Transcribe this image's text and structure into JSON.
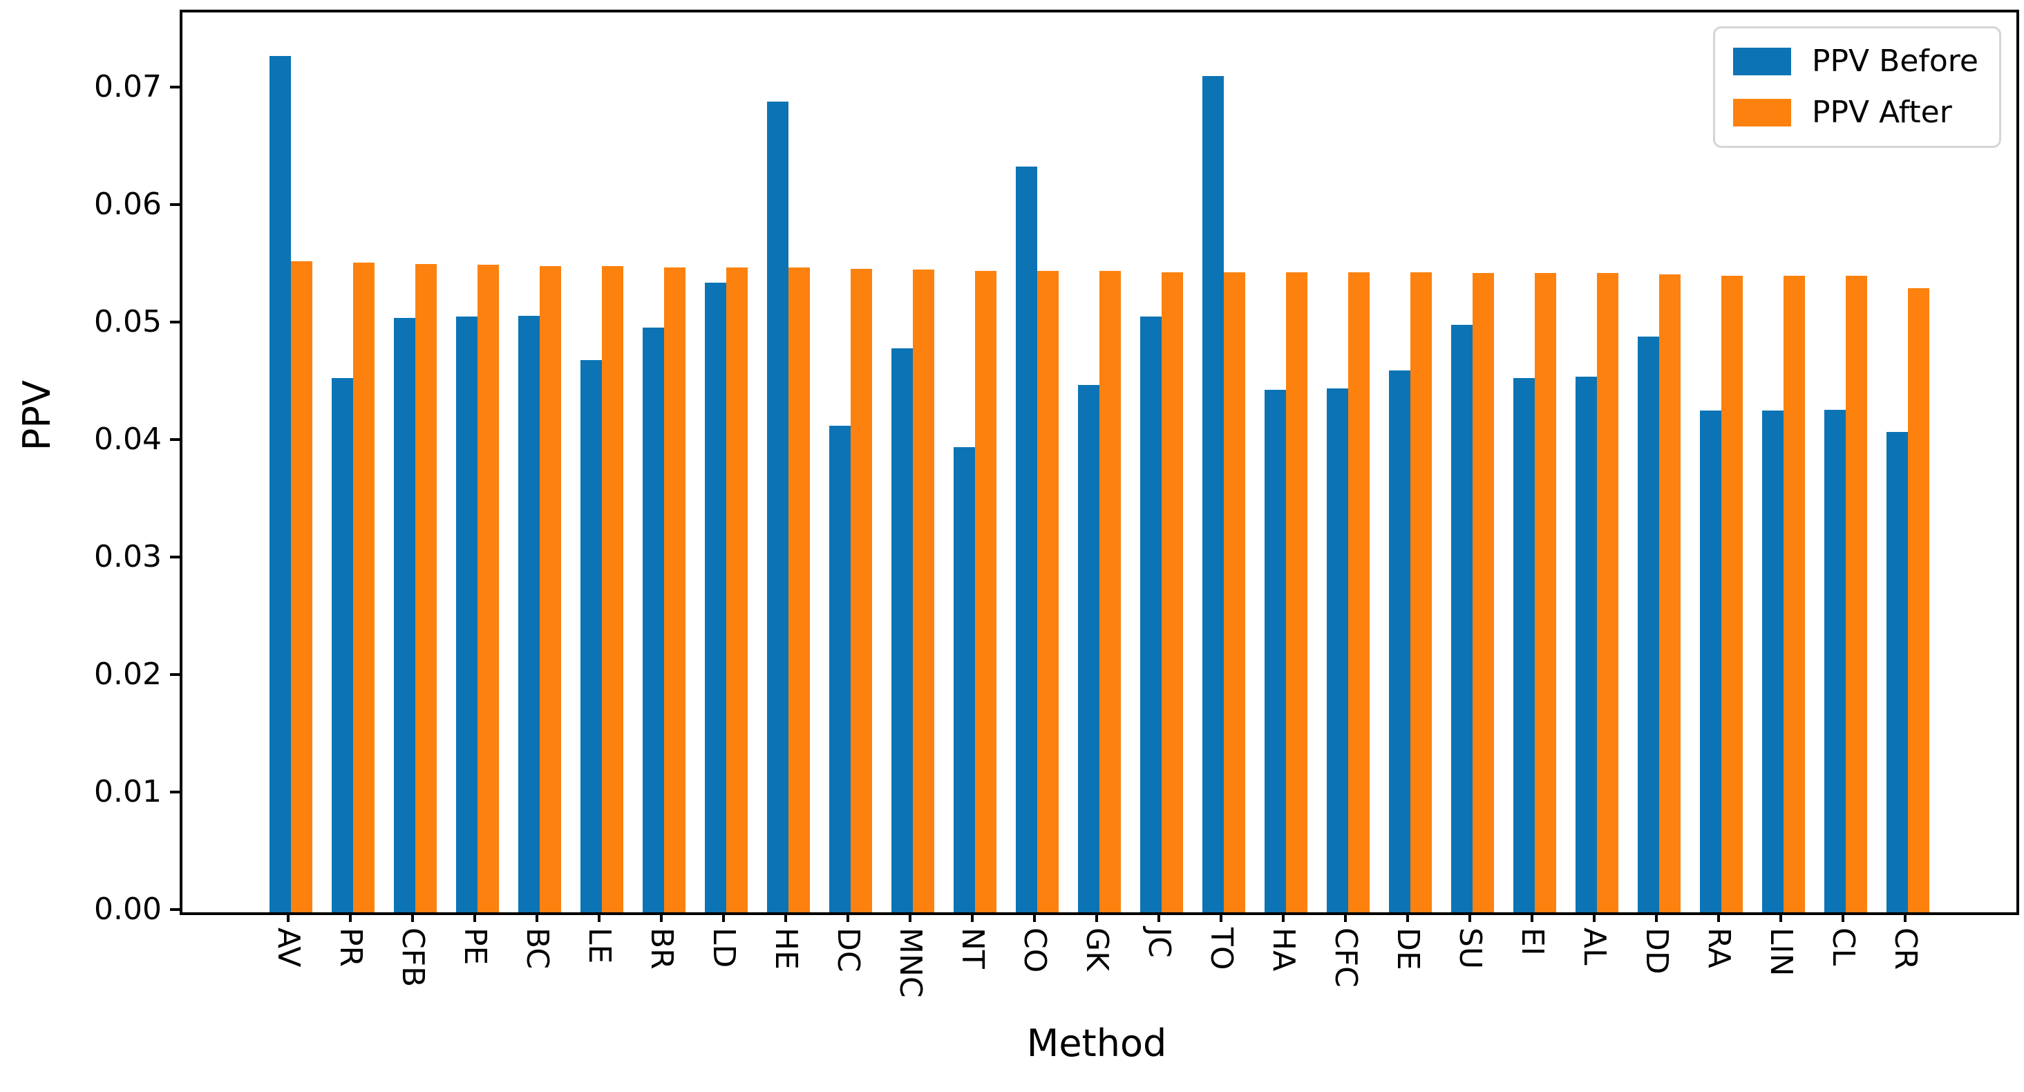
{
  "figure": {
    "background": "#ffffff"
  },
  "chart_data": {
    "type": "bar",
    "title": "",
    "xlabel": "Method",
    "ylabel": "PPV",
    "categories": [
      "AV",
      "PR",
      "CFB",
      "PE",
      "BC",
      "LE",
      "BR",
      "LD",
      "HE",
      "DC",
      "MNC",
      "NT",
      "CO",
      "GK",
      "JC",
      "TO",
      "HA",
      "CFC",
      "DE",
      "SU",
      "EI",
      "AL",
      "DD",
      "RA",
      "LIN",
      "CL",
      "CR"
    ],
    "series": [
      {
        "name": "PPV Before",
        "color": "#0c74b5",
        "values": [
          0.0729,
          0.0455,
          0.0506,
          0.0507,
          0.0508,
          0.047,
          0.0498,
          0.0536,
          0.069,
          0.0414,
          0.048,
          0.0396,
          0.0635,
          0.0449,
          0.0507,
          0.0712,
          0.0445,
          0.0446,
          0.0461,
          0.05,
          0.0455,
          0.0456,
          0.049,
          0.0427,
          0.0427,
          0.0428,
          0.0409
        ]
      },
      {
        "name": "PPV After",
        "color": "#fd810e",
        "values": [
          0.0554,
          0.0553,
          0.0552,
          0.0551,
          0.055,
          0.055,
          0.0549,
          0.0549,
          0.0549,
          0.0548,
          0.0547,
          0.0546,
          0.0546,
          0.0546,
          0.0545,
          0.0545,
          0.0545,
          0.0545,
          0.0545,
          0.0544,
          0.0544,
          0.0544,
          0.0543,
          0.0542,
          0.0542,
          0.0542,
          0.0531
        ]
      }
    ],
    "ylim": [
      0,
      0.0766
    ],
    "yticks": [
      "0.00",
      "0.01",
      "0.02",
      "0.03",
      "0.04",
      "0.05",
      "0.06",
      "0.07"
    ],
    "ytick_values": [
      0.0,
      0.01,
      0.02,
      0.03,
      0.04,
      0.05,
      0.06,
      0.07
    ],
    "grid": false,
    "legend_position": "upper right"
  },
  "legend": {
    "items": [
      {
        "label": "PPV Before"
      },
      {
        "label": "PPV After"
      }
    ]
  }
}
